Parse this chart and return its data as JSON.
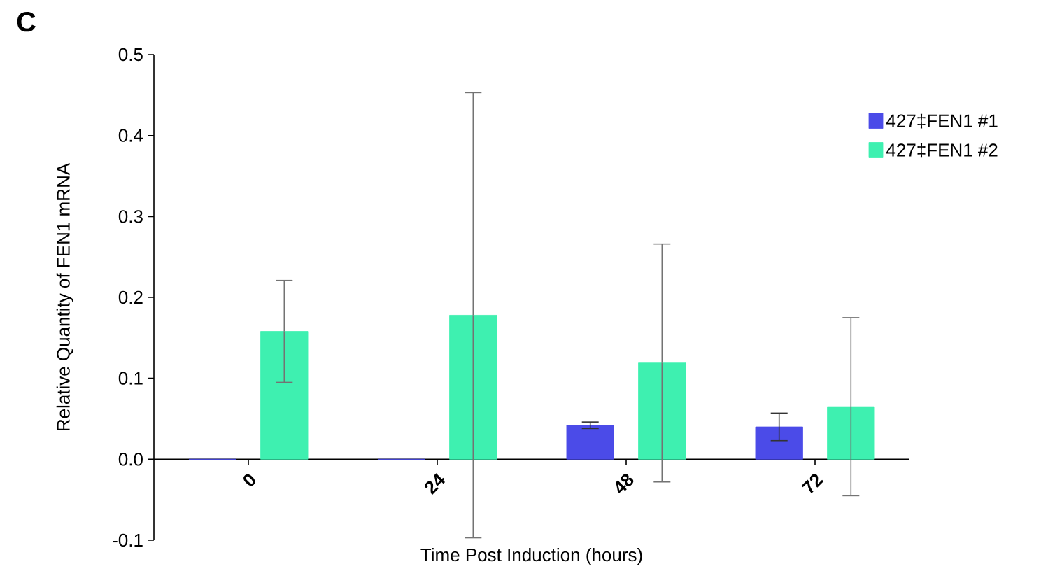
{
  "chart_data": {
    "type": "bar",
    "xlabel": "Time Post Induction (hours)",
    "ylabel": "Relative Quantity of FEN1 mRNA",
    "annotations": [
      "C"
    ],
    "categories": [
      "0",
      "24",
      "48",
      "72"
    ],
    "series": [
      {
        "name": "427‡FEN1 #1",
        "color": "#4b4be8",
        "values": [
          0.0,
          0.0,
          0.042,
          0.04
        ],
        "errors": [
          null,
          null,
          0.004,
          0.017
        ]
      },
      {
        "name": "427‡FEN1 #2",
        "color": "#3ef0b0",
        "values": [
          0.158,
          0.178,
          0.119,
          0.065
        ],
        "errors": [
          0.063,
          0.275,
          0.147,
          0.11
        ]
      }
    ],
    "ylim": [
      -0.1,
      0.5
    ],
    "yticks": [
      -0.1,
      {
        "value": 0,
        "label": "0.0"
      },
      0.1,
      0.2,
      0.3,
      0.4,
      0.5
    ],
    "grid": false,
    "legend": "top right"
  }
}
